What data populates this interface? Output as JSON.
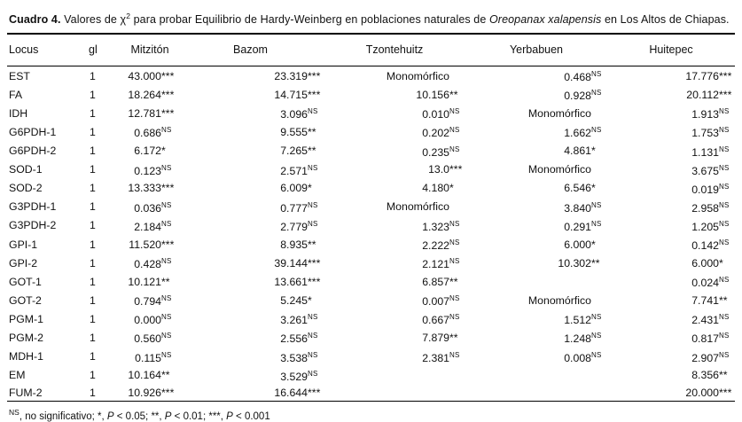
{
  "page": {
    "background": "#ffffff",
    "text_color": "#111111",
    "rule_color": "#000000"
  },
  "caption": {
    "label": "Cuadro 4.",
    "seg1": " Valores de ",
    "chi": "χ",
    "chi_sup": "2",
    "seg2": " para probar Equilibrio de Hardy-Weinberg en poblaciones naturales de ",
    "species": "Oreopanax xalapensis",
    "seg3": " en Los Altos de Chiapas."
  },
  "table": {
    "headers": [
      "Locus",
      "gl",
      "Mitzitón",
      "Bazom",
      "Tzontehuitz",
      "Yerbabuen",
      "Huitepec"
    ],
    "rows": [
      {
        "locus": "EST",
        "gl": "1",
        "values": [
          {
            "v": "43.000",
            "s": "***"
          },
          {
            "v": "23.319",
            "s": "***"
          },
          {
            "v": "Monomórfico"
          },
          {
            "v": "0.468",
            "s": "NS"
          },
          {
            "v": "17.776",
            "s": "***"
          }
        ]
      },
      {
        "locus": "FA",
        "gl": "1",
        "values": [
          {
            "v": "18.264",
            "s": "***"
          },
          {
            "v": "14.715",
            "s": "***"
          },
          {
            "v": "10.156",
            "s": "**"
          },
          {
            "v": "0.928",
            "s": "NS"
          },
          {
            "v": "20.112",
            "s": "***"
          }
        ]
      },
      {
        "locus": "IDH",
        "gl": "1",
        "values": [
          {
            "v": "12.781",
            "s": "***"
          },
          {
            "v": "3.096",
            "s": "NS"
          },
          {
            "v": "0.010",
            "s": "NS"
          },
          {
            "v": "Monomórfico"
          },
          {
            "v": "1.913",
            "s": "NS"
          }
        ]
      },
      {
        "locus": "G6PDH-1",
        "gl": "1",
        "values": [
          {
            "v": "0.686",
            "s": "NS"
          },
          {
            "v": "9.555",
            "s": "**"
          },
          {
            "v": "0.202",
            "s": "NS"
          },
          {
            "v": "1.662",
            "s": "NS"
          },
          {
            "v": "1.753",
            "s": "NS"
          }
        ]
      },
      {
        "locus": "G6PDH-2",
        "gl": "1",
        "values": [
          {
            "v": "6.172",
            "s": "*"
          },
          {
            "v": "7.265",
            "s": "**"
          },
          {
            "v": "0.235",
            "s": "NS"
          },
          {
            "v": "4.861",
            "s": "*"
          },
          {
            "v": "1.131",
            "s": "NS"
          }
        ]
      },
      {
        "locus": "SOD-1",
        "gl": "1",
        "values": [
          {
            "v": "0.123",
            "s": "NS"
          },
          {
            "v": "2.571",
            "s": "NS"
          },
          {
            "v": "13.0",
            "s": "***"
          },
          {
            "v": "Monomórfico"
          },
          {
            "v": "3.675",
            "s": "NS"
          }
        ]
      },
      {
        "locus": "SOD-2",
        "gl": "1",
        "values": [
          {
            "v": "13.333",
            "s": "***"
          },
          {
            "v": "6.009",
            "s": "*"
          },
          {
            "v": "4.180",
            "s": "*"
          },
          {
            "v": "6.546",
            "s": "*"
          },
          {
            "v": "0.019",
            "s": "NS"
          }
        ]
      },
      {
        "locus": "G3PDH-1",
        "gl": "1",
        "values": [
          {
            "v": "0.036",
            "s": "NS"
          },
          {
            "v": "0.777",
            "s": "NS"
          },
          {
            "v": "Monomórfico"
          },
          {
            "v": "3.840",
            "s": "NS"
          },
          {
            "v": "2.958",
            "s": "NS"
          }
        ]
      },
      {
        "locus": "G3PDH-2",
        "gl": "1",
        "values": [
          {
            "v": "2.184",
            "s": "NS"
          },
          {
            "v": "2.779",
            "s": "NS"
          },
          {
            "v": "1.323",
            "s": "NS"
          },
          {
            "v": "0.291",
            "s": "NS"
          },
          {
            "v": "1.205",
            "s": "NS"
          }
        ]
      },
      {
        "locus": "GPI-1",
        "gl": "1",
        "values": [
          {
            "v": "11.520",
            "s": "***"
          },
          {
            "v": "8.935",
            "s": "**"
          },
          {
            "v": "2.222",
            "s": "NS"
          },
          {
            "v": "6.000",
            "s": "*"
          },
          {
            "v": "0.142",
            "s": "NS"
          }
        ]
      },
      {
        "locus": "GPI-2",
        "gl": "1",
        "values": [
          {
            "v": "0.428",
            "s": "NS"
          },
          {
            "v": "39.144",
            "s": "***"
          },
          {
            "v": "2.121",
            "s": "NS"
          },
          {
            "v": "10.302",
            "s": "**"
          },
          {
            "v": "6.000",
            "s": "*"
          }
        ]
      },
      {
        "locus": "GOT-1",
        "gl": "1",
        "values": [
          {
            "v": "10.121",
            "s": "**"
          },
          {
            "v": "13.661",
            "s": "***"
          },
          {
            "v": "6.857",
            "s": "**"
          },
          null,
          {
            "v": "0.024",
            "s": "NS"
          }
        ]
      },
      {
        "locus": "GOT-2",
        "gl": "1",
        "values": [
          {
            "v": "0.794",
            "s": "NS"
          },
          {
            "v": "5.245",
            "s": "*"
          },
          {
            "v": "0.007",
            "s": "NS"
          },
          {
            "v": "Monomórfico"
          },
          {
            "v": "7.741",
            "s": "**"
          }
        ]
      },
      {
        "locus": "PGM-1",
        "gl": "1",
        "values": [
          {
            "v": "0.000",
            "s": "NS"
          },
          {
            "v": "3.261",
            "s": "NS"
          },
          {
            "v": "0.667",
            "s": "NS"
          },
          {
            "v": "1.512",
            "s": "NS"
          },
          {
            "v": "2.431",
            "s": "NS"
          }
        ]
      },
      {
        "locus": "PGM-2",
        "gl": "1",
        "values": [
          {
            "v": "0.560",
            "s": "NS"
          },
          {
            "v": "2.556",
            "s": "NS"
          },
          {
            "v": "7.879",
            "s": "**"
          },
          {
            "v": "1.248",
            "s": "NS"
          },
          {
            "v": "0.817",
            "s": "NS"
          }
        ]
      },
      {
        "locus": "MDH-1",
        "gl": "1",
        "values": [
          {
            "v": "0.115",
            "s": "NS"
          },
          {
            "v": "3.538",
            "s": "NS"
          },
          {
            "v": "2.381",
            "s": "NS"
          },
          {
            "v": "0.008",
            "s": "NS"
          },
          {
            "v": "2.907",
            "s": "NS"
          }
        ]
      },
      {
        "locus": "EM",
        "gl": "1",
        "values": [
          {
            "v": "10.164",
            "s": "**"
          },
          {
            "v": "3.529",
            "s": "NS"
          },
          null,
          null,
          {
            "v": "8.356",
            "s": "**"
          }
        ]
      },
      {
        "locus": "FUM-2",
        "gl": "1",
        "values": [
          {
            "v": "10.926",
            "s": "***"
          },
          {
            "v": "16.644",
            "s": "***"
          },
          null,
          null,
          {
            "v": "20.000",
            "s": "***"
          }
        ]
      }
    ]
  },
  "footnote": {
    "ns": "NS",
    "seg1": ", no significativo; *, ",
    "p": "P",
    "seg2": " < 0.05; **, ",
    "seg3": " < 0.01; ***, ",
    "seg4": " < 0.001"
  }
}
